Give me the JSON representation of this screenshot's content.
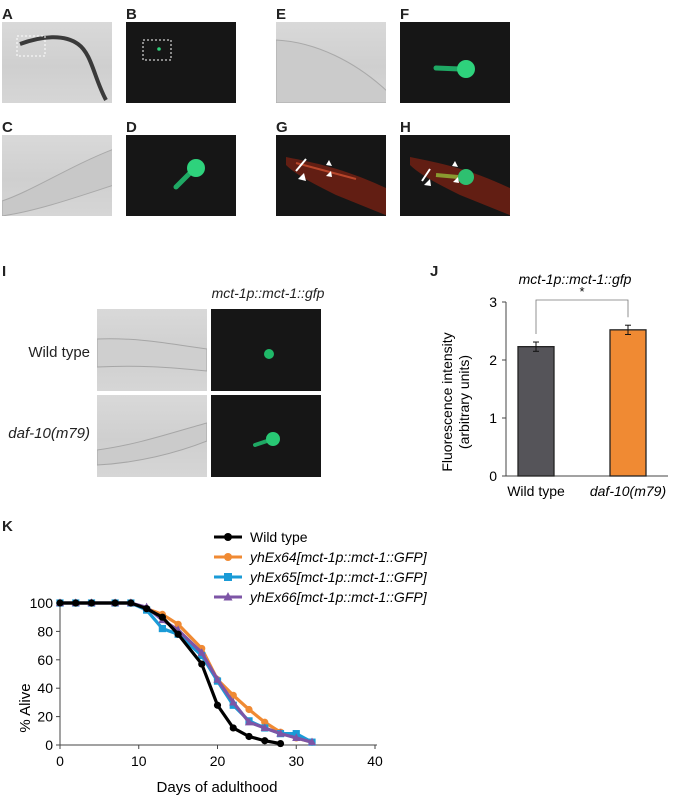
{
  "panels": {
    "a": "A",
    "b": "B",
    "c": "C",
    "d": "D",
    "e": "E",
    "f": "F",
    "g": "G",
    "h": "H",
    "i": "I",
    "j": "J",
    "k": "K"
  },
  "panel_i": {
    "title": "mct-1p::mct-1::gfp",
    "rows": [
      "Wild type",
      "daf-10(m79)"
    ]
  },
  "chart_data": [
    {
      "type": "bar",
      "title": "mct-1p::mct-1::gfp",
      "ylabel": "Fluorescence intensity (arbitrary units)",
      "ylabel_lines": [
        "Fluorescence intensity",
        "(arbitrary units)"
      ],
      "categories": [
        "Wild type",
        "daf-10(m79)"
      ],
      "values": [
        2.23,
        2.52
      ],
      "errors": [
        0.08,
        0.08
      ],
      "colors": [
        "#555459",
        "#f08a33"
      ],
      "ylim": [
        0,
        3
      ],
      "yticks": [
        0,
        1,
        2,
        3
      ],
      "significance": "*"
    },
    {
      "type": "line",
      "xlabel": "Days of adulthood",
      "ylabel": "% Alive",
      "xlim": [
        0,
        40
      ],
      "ylim": [
        0,
        100
      ],
      "xticks": [
        0,
        10,
        20,
        30,
        40
      ],
      "yticks": [
        0,
        20,
        40,
        60,
        80,
        100
      ],
      "legend_position": "top",
      "series": [
        {
          "name": "Wild type",
          "color": "#000000",
          "marker": "circle",
          "x": [
            0,
            2,
            4,
            7,
            9,
            11,
            13,
            15,
            18,
            20,
            22,
            24,
            26,
            28
          ],
          "y": [
            100,
            100,
            100,
            100,
            100,
            96,
            90,
            78,
            57,
            28,
            12,
            6,
            3,
            1
          ]
        },
        {
          "name": "yhEx64[mct-1p::mct-1::GFP]",
          "color": "#f08a33",
          "marker": "circle",
          "x": [
            0,
            2,
            4,
            7,
            9,
            11,
            13,
            15,
            18,
            20,
            22,
            24,
            26,
            28,
            30,
            32
          ],
          "y": [
            100,
            100,
            100,
            100,
            100,
            96,
            92,
            85,
            68,
            46,
            35,
            25,
            16,
            9,
            5,
            2
          ]
        },
        {
          "name": "yhEx65[mct-1p::mct-1::GFP]",
          "color": "#1a9bd7",
          "marker": "square",
          "x": [
            0,
            2,
            4,
            7,
            9,
            11,
            13,
            15,
            18,
            20,
            22,
            24,
            26,
            28,
            30,
            32
          ],
          "y": [
            100,
            100,
            100,
            100,
            100,
            95,
            82,
            78,
            63,
            45,
            28,
            17,
            12,
            8,
            8,
            2
          ]
        },
        {
          "name": "yhEx66[mct-1p::mct-1::GFP]",
          "color": "#7d55a6",
          "marker": "triangle",
          "x": [
            0,
            2,
            4,
            7,
            9,
            11,
            13,
            15,
            18,
            20,
            22,
            24,
            26,
            28,
            30,
            32
          ],
          "y": [
            100,
            100,
            100,
            100,
            100,
            97,
            88,
            81,
            65,
            46,
            30,
            16,
            12,
            8,
            5,
            2
          ]
        }
      ]
    }
  ]
}
